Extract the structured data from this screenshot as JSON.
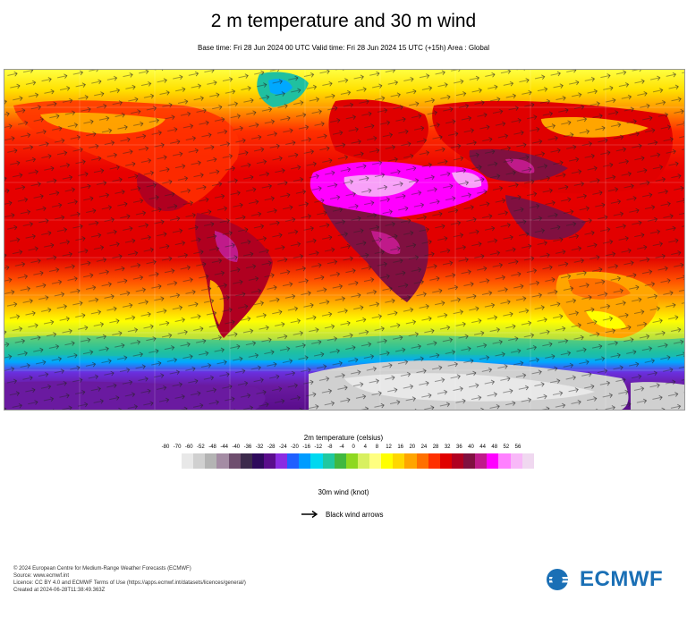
{
  "title": "2 m temperature and 30 m wind",
  "subtitle": "Base time: Fri 28 Jun 2024 00 UTC Valid time: Fri 28 Jun 2024 15 UTC (+15h) Area : Global",
  "legend": {
    "title": "2m temperature (celsius)",
    "ticks": [
      "-80",
      "-70",
      "-60",
      "-52",
      "-48",
      "-44",
      "-40",
      "-36",
      "-32",
      "-28",
      "-24",
      "-20",
      "-16",
      "-12",
      "-8",
      "-4",
      "0",
      "4",
      "8",
      "12",
      "16",
      "20",
      "24",
      "28",
      "32",
      "36",
      "40",
      "44",
      "48",
      "52",
      "56"
    ],
    "colors": [
      "#e8e8e8",
      "#d0d0d0",
      "#b4b4b4",
      "#a48ca4",
      "#6e4e6e",
      "#3c2a4c",
      "#2e0a5c",
      "#5a0d8c",
      "#8a2be2",
      "#2060ff",
      "#009cff",
      "#00d8f0",
      "#20c8a0",
      "#40b840",
      "#8ed820",
      "#d8f060",
      "#ffff80",
      "#ffff00",
      "#ffd700",
      "#ffa500",
      "#ff7000",
      "#ff3000",
      "#e00000",
      "#b00020",
      "#801040",
      "#c01a8a",
      "#ff00ff",
      "#ff80ff",
      "#f8b8f8",
      "#f0d8f0",
      "#e0e0e0"
    ]
  },
  "wind": {
    "title": "30m wind (knot)",
    "arrow_label": "Black wind arrows"
  },
  "footer": [
    "© 2024 European Centre for Medium-Range Weather Forecasts (ECMWF)",
    "Source: www.ecmwf.int",
    "Licence: CC BY 4.0 and ECMWF Terms of Use (https://apps.ecmwf.int/datasets/licences/general/)",
    "Created at 2024-06-28T11:38:49.363Z"
  ],
  "logo": {
    "text": "ECMWF",
    "color": "#1a6fb5"
  }
}
